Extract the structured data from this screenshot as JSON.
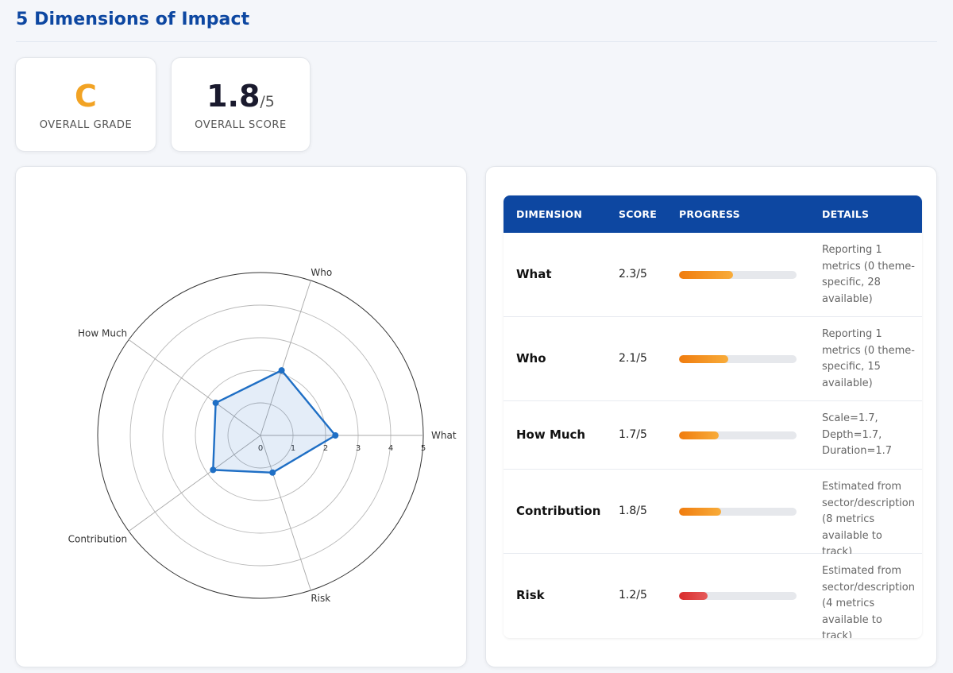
{
  "page": {
    "title": "5 Dimensions of Impact"
  },
  "kpis": {
    "grade": {
      "value": "C",
      "label": "OVERALL GRADE"
    },
    "score": {
      "value": "1.8",
      "suffix": "/5",
      "label": "OVERALL SCORE"
    }
  },
  "colors": {
    "brand": "#0d47a1",
    "grade": "#f2a324",
    "radar_line": "#1f6fc5",
    "radar_fill": "rgba(31,111,197,0.12)",
    "bar_orange_start": "#f07c0e",
    "bar_orange_end": "#f8ac3a",
    "bar_red_start": "#d92b2b",
    "bar_red_end": "#e55a5a"
  },
  "chart_data": {
    "type": "radar",
    "axes": [
      "What",
      "Who",
      "How Much",
      "Contribution",
      "Risk"
    ],
    "values": [
      2.3,
      2.1,
      1.7,
      1.8,
      1.2
    ],
    "rlim": [
      0,
      5
    ],
    "radial_ticks": [
      "0",
      "1",
      "2",
      "3",
      "4",
      "5"
    ],
    "grid": true
  },
  "table": {
    "headers": {
      "dimension": "DIMENSION",
      "score": "SCORE",
      "progress": "PROGRESS",
      "details": "DETAILS"
    },
    "rows": [
      {
        "dimension": "What",
        "score": "2.3/5",
        "progress": 0.46,
        "level": "orange",
        "details": [
          "Reporting 1",
          "metrics (0 theme-",
          "specific, 28",
          "available)"
        ]
      },
      {
        "dimension": "Who",
        "score": "2.1/5",
        "progress": 0.42,
        "level": "orange",
        "details": [
          "Reporting 1",
          "metrics (0 theme-",
          "specific, 15",
          "available)"
        ]
      },
      {
        "dimension": "How Much",
        "score": "1.7/5",
        "progress": 0.34,
        "level": "orange",
        "details": [
          "Scale=1.7,",
          "Depth=1.7,",
          "Duration=1.7"
        ]
      },
      {
        "dimension": "Contribution",
        "score": "1.8/5",
        "progress": 0.36,
        "level": "orange",
        "details": [
          "Estimated from",
          "sector/description",
          "(8 metrics",
          "available to track)"
        ]
      },
      {
        "dimension": "Risk",
        "score": "1.2/5",
        "progress": 0.24,
        "level": "red",
        "details": [
          "Estimated from",
          "sector/description",
          "(4 metrics",
          "available to track)"
        ]
      }
    ]
  }
}
